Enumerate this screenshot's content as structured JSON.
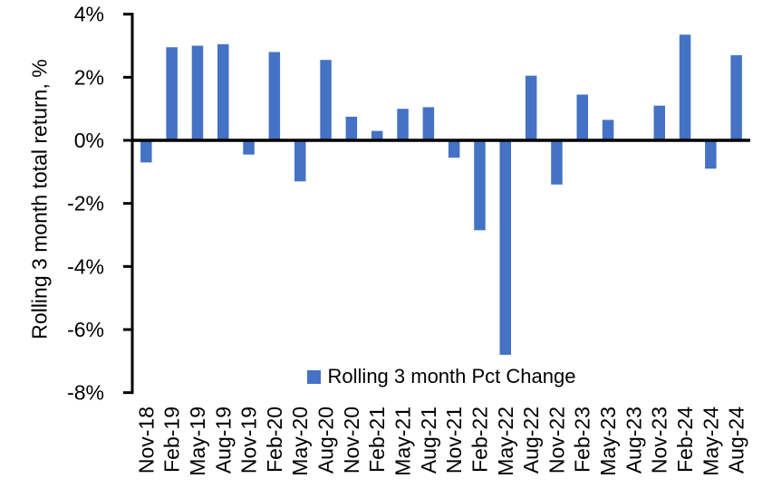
{
  "chart_data": {
    "type": "bar",
    "title": "",
    "ylabel": "Rolling 3 month total return, %",
    "xlabel": "",
    "legend_label": "Rolling 3 month Pct Change",
    "legend_position": "bottom-center-inside",
    "grid": false,
    "ylim": [
      -8,
      4
    ],
    "ytick_step": 2,
    "yticks": [
      4,
      2,
      0,
      -2,
      -4,
      -6,
      -8
    ],
    "ytick_labels": [
      "4%",
      "2%",
      "0%",
      "-2%",
      "-4%",
      "-6%",
      "-8%"
    ],
    "bar_color": "#4472C4",
    "axis_color": "#000000",
    "categories": [
      "Nov-18",
      "Feb-19",
      "May-19",
      "Aug-19",
      "Nov-19",
      "Feb-20",
      "May-20",
      "Aug-20",
      "Nov-20",
      "Feb-21",
      "May-21",
      "Aug-21",
      "Nov-21",
      "Feb-22",
      "May-22",
      "Aug-22",
      "Nov-22",
      "Feb-23",
      "May-23",
      "Aug-23",
      "Nov-23",
      "Feb-24",
      "May-24",
      "Aug-24"
    ],
    "values": [
      -0.7,
      2.95,
      3.0,
      3.05,
      -0.45,
      2.8,
      -1.3,
      2.55,
      0.75,
      0.3,
      1.0,
      1.05,
      -0.55,
      -2.85,
      -6.8,
      2.05,
      -1.4,
      1.45,
      0.65,
      0.0,
      1.1,
      3.35,
      -0.9,
      2.7
    ]
  }
}
